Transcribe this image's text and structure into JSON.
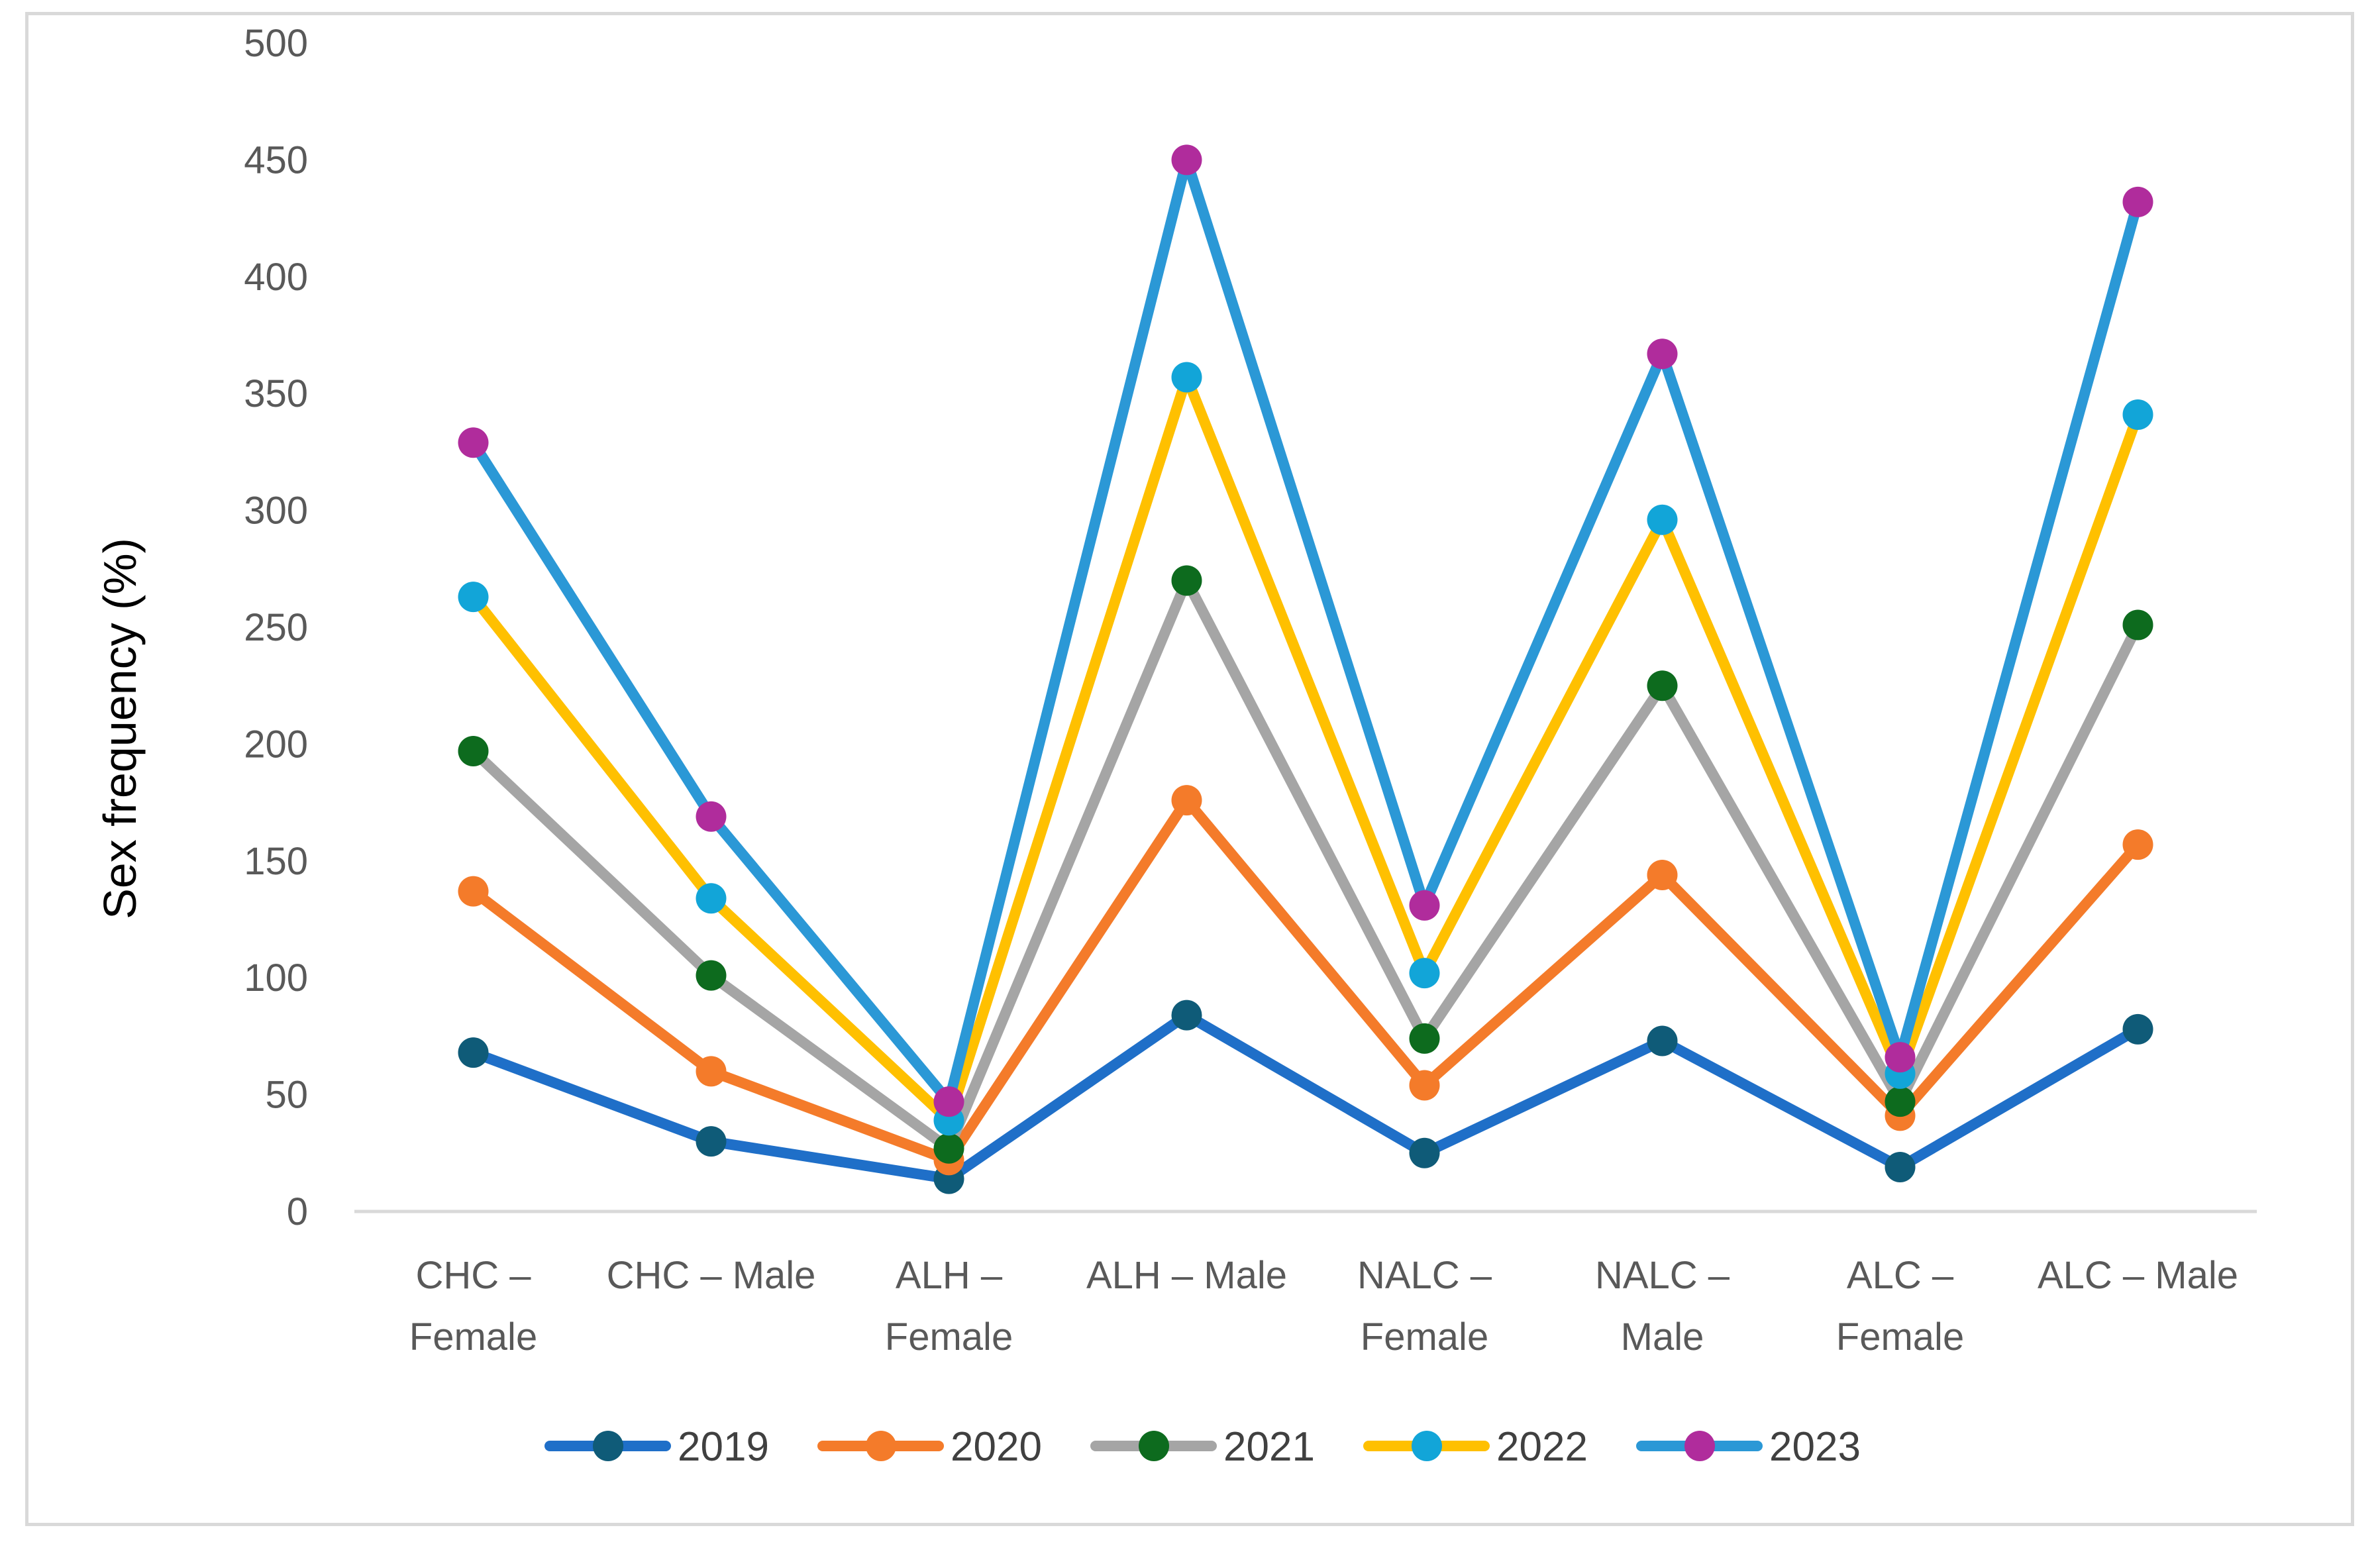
{
  "chart_data": {
    "type": "line",
    "title": "",
    "xlabel": "",
    "ylabel": "Sex frequency (%)",
    "ylim": [
      0,
      500
    ],
    "yticks": [
      0,
      50,
      100,
      150,
      200,
      250,
      300,
      350,
      400,
      450,
      500
    ],
    "grid": false,
    "legend_position": "bottom",
    "categories": [
      [
        "CHC –",
        "Female"
      ],
      [
        "CHC – Male"
      ],
      [
        "ALH –",
        "Female"
      ],
      [
        "ALH – Male"
      ],
      [
        "NALC –",
        "Female"
      ],
      [
        "NALC –",
        "Male"
      ],
      [
        "ALC –",
        "Female"
      ],
      [
        "ALC – Male"
      ]
    ],
    "series": [
      {
        "name": "2019",
        "line_color": "#1f6fc8",
        "marker_color": "#0f5b78",
        "values": [
          68,
          30,
          14,
          84,
          25,
          73,
          19,
          78
        ]
      },
      {
        "name": "2020",
        "line_color": "#f47b2a",
        "marker_color": "#f47b2a",
        "values": [
          137,
          60,
          22,
          176,
          54,
          144,
          41,
          157
        ]
      },
      {
        "name": "2021",
        "line_color": "#a5a5a5",
        "marker_color": "#0d6b1e",
        "values": [
          197,
          101,
          27,
          270,
          74,
          225,
          47,
          251
        ]
      },
      {
        "name": "2022",
        "line_color": "#ffc000",
        "marker_color": "#12a5d8",
        "values": [
          263,
          134,
          39,
          357,
          102,
          296,
          59,
          341
        ]
      },
      {
        "name": "2023",
        "line_color": "#2b98d6",
        "marker_color": "#b02c9c",
        "values": [
          329,
          169,
          47,
          450,
          131,
          367,
          66,
          432
        ]
      }
    ]
  }
}
